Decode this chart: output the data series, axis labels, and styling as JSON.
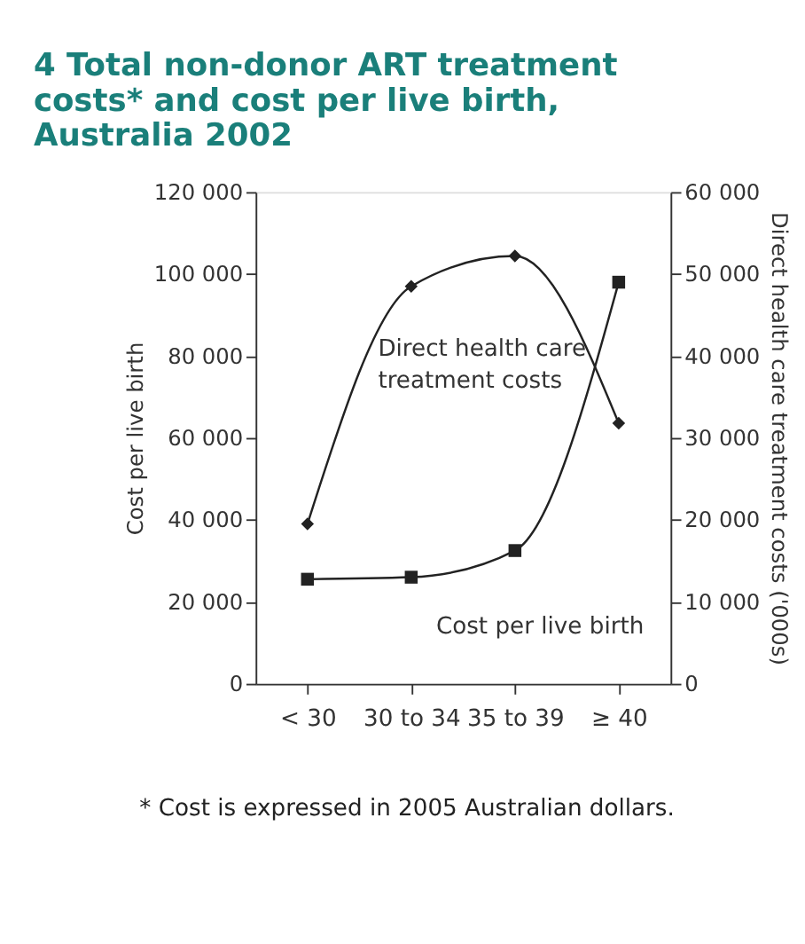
{
  "chart_data": {
    "type": "line",
    "title": "4  Total non-donor ART treatment costs* and cost per live birth, Australia 2002",
    "ylabel": "Cost per live birth",
    "y2label": "Direct health care treatment costs ('000s)",
    "categories": [
      "< 30",
      "30 to 34",
      "35 to 39",
      "≥ 40"
    ],
    "series": [
      {
        "name": "Cost per live birth",
        "color": "#222222",
        "marker": "square",
        "values": [
          25500,
          26000,
          32500,
          98000
        ]
      },
      {
        "name": "Direct health care treatment costs",
        "color": "#222222",
        "marker": "diamond",
        "axis": "y2",
        "values": [
          19500,
          48500,
          52200,
          31800
        ]
      }
    ],
    "ylim": [
      0,
      120000
    ],
    "yticks": [
      {
        "value": 0,
        "label": "0"
      },
      {
        "value": 20000,
        "label": "20 000"
      },
      {
        "value": 40000,
        "label": "40 000"
      },
      {
        "value": 60000,
        "label": "60 000"
      },
      {
        "value": 80000,
        "label": "80 000"
      },
      {
        "value": 100000,
        "label": "100 000"
      },
      {
        "value": 120000,
        "label": "120 000"
      }
    ],
    "y2lim": [
      0,
      60000
    ],
    "y2ticks": [
      {
        "value": 0,
        "label": "0"
      },
      {
        "value": 10000,
        "label": "10 000"
      },
      {
        "value": 20000,
        "label": "20 000"
      },
      {
        "value": 30000,
        "label": "30 000"
      },
      {
        "value": 40000,
        "label": "40 000"
      },
      {
        "value": 50000,
        "label": "50 000"
      },
      {
        "value": 60000,
        "label": "60 000"
      }
    ],
    "grid": false,
    "legend": false,
    "line_style": "solid",
    "annotations": [
      "* Cost is expressed in 2005 Australian dollars."
    ]
  }
}
